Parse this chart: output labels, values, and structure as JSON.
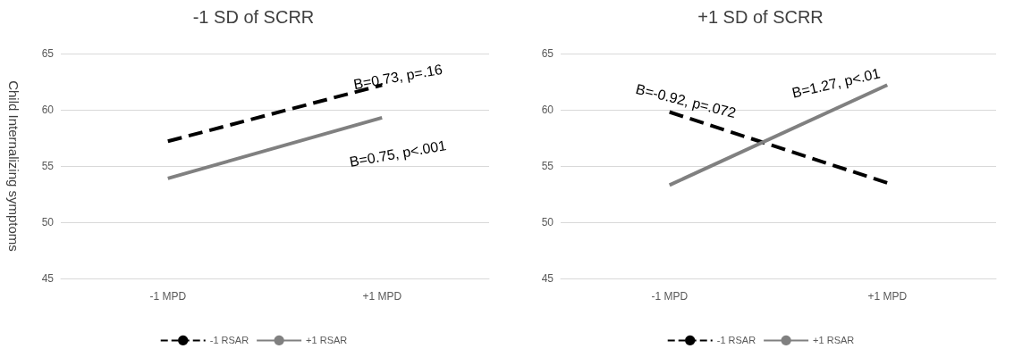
{
  "chart_data": [
    {
      "type": "line",
      "title": "-1 SD of SCRR",
      "ylabel": "Child Internalizing symptoms",
      "categories": [
        "-1 MPD",
        "+1 MPD"
      ],
      "ylim": [
        45,
        65
      ],
      "yticks": [
        45,
        50,
        55,
        60,
        65
      ],
      "grid": "y",
      "legend": "bottom",
      "marker": "none",
      "series": [
        {
          "name": "-1 RSAR",
          "color": "#000000",
          "line_style": "dashed",
          "values": [
            57.2,
            62.2
          ]
        },
        {
          "name": "+1 RSAR",
          "color": "#808080",
          "line_style": "solid",
          "values": [
            53.9,
            59.3
          ]
        }
      ],
      "annotations": [
        "B=0.73, p=.16",
        "B=0.75, p<.001"
      ]
    },
    {
      "type": "line",
      "title": "+1 SD of SCRR",
      "categories": [
        "-1 MPD",
        "+1 MPD"
      ],
      "ylim": [
        45,
        65
      ],
      "yticks": [
        45,
        50,
        55,
        60,
        65
      ],
      "grid": "y",
      "legend": "bottom",
      "marker": "none",
      "series": [
        {
          "name": "-1 RSAR",
          "color": "#000000",
          "line_style": "dashed",
          "values": [
            59.8,
            53.5
          ]
        },
        {
          "name": "+1 RSAR",
          "color": "#808080",
          "line_style": "solid",
          "values": [
            53.3,
            62.2
          ]
        }
      ],
      "annotations": [
        "B=-0.92, p=.072",
        "B=1.27, p<.01"
      ]
    }
  ]
}
